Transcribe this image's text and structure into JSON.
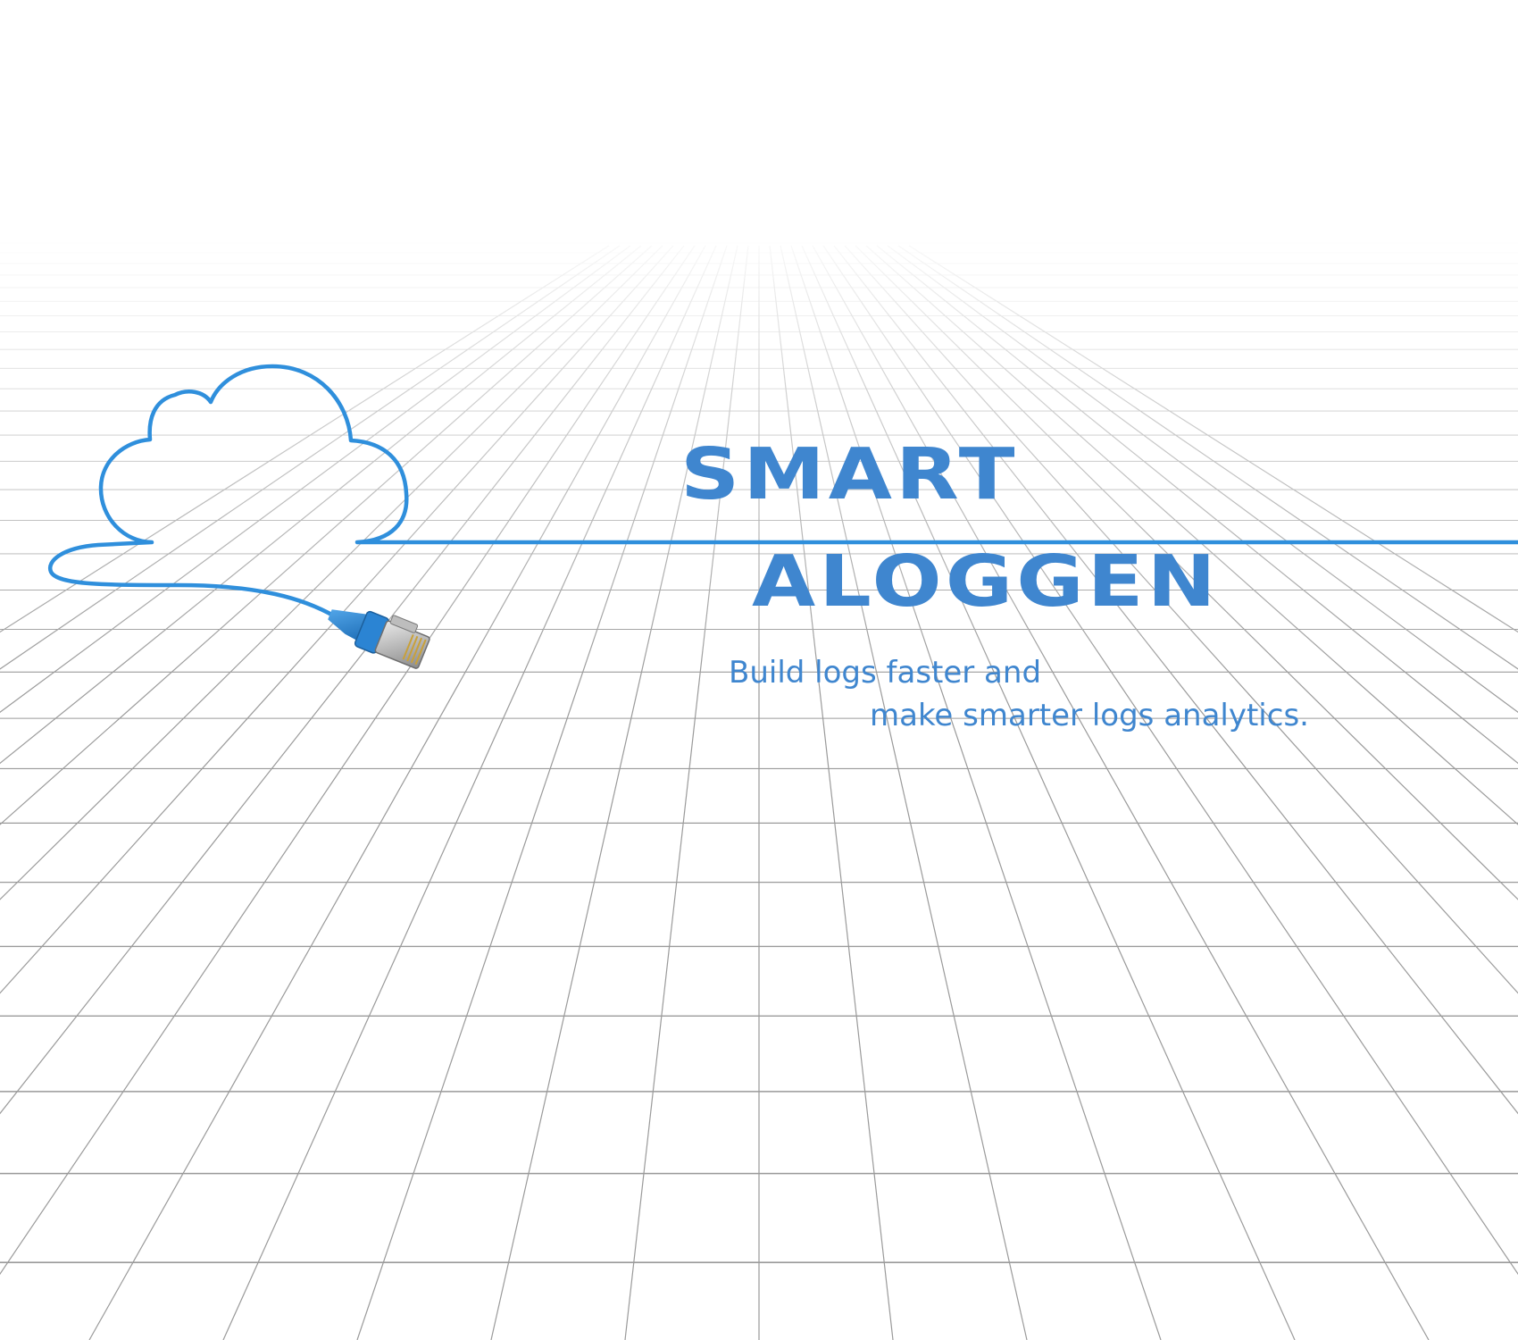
{
  "hero": {
    "title_line_1": "SMART",
    "title_line_2": "ALOGGEN",
    "tagline_line_1": "Build logs faster and",
    "tagline_line_2": "make smarter logs analytics."
  },
  "illustration": {
    "cloud": "cloud-outline-icon",
    "connector": "ethernet-plug-icon",
    "floor": "perspective-grid"
  },
  "colors": {
    "brand_blue": "#3f86cf",
    "cable_blue": "#2f8fdc",
    "grid_line": "#9a9a9a",
    "background": "#ffffff"
  }
}
